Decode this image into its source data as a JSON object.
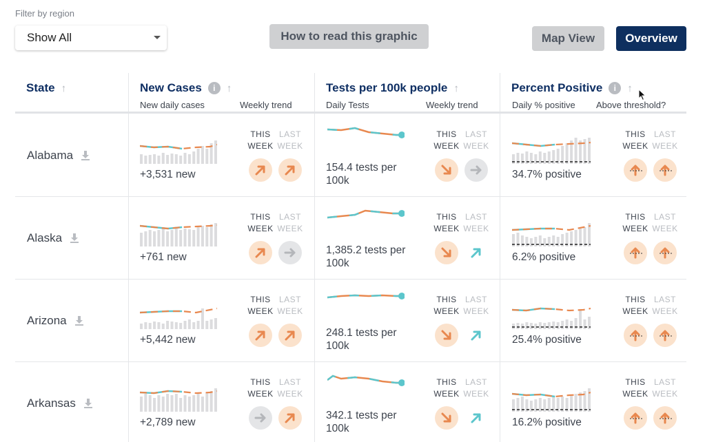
{
  "filter": {
    "label": "Filter by region",
    "selected": "Show All"
  },
  "buttons": {
    "how_to": "How to read this graphic",
    "map_view": "Map View",
    "overview": "Overview"
  },
  "headers": {
    "state": "State",
    "new_cases": {
      "title": "New Cases",
      "sub1": "New daily cases",
      "sub2": "Weekly trend"
    },
    "tests": {
      "title": "Tests per 100k people",
      "sub1": "Daily Tests",
      "sub2": "Weekly trend"
    },
    "percent": {
      "title": "Percent Positive",
      "sub1": "Daily % positive",
      "sub2": "Above threshold?"
    }
  },
  "week_labels": {
    "this_1": "THIS",
    "this_2": "WEEK",
    "last_1": "LAST",
    "last_2": "WEEK"
  },
  "colors": {
    "orange": "#e8884f",
    "teal": "#5cc6cc",
    "bar": "#dcdcde",
    "flat": "#b4b6ba",
    "navy": "#0e2f5f"
  },
  "icons": {
    "info": "info-icon",
    "sort": "sort-up-icon",
    "download": "download-icon",
    "cursor": "mouse-pointer-icon"
  },
  "rows": [
    {
      "state": "Alabama",
      "cases_text": "+3,531 new",
      "tests_text": "154.4 tests per 100k",
      "percent_text": "34.7% positive",
      "cases_trend": [
        "up",
        "up"
      ],
      "tests_trend": [
        "down",
        "flat"
      ],
      "percent_trend": [
        "above",
        "above"
      ]
    },
    {
      "state": "Alaska",
      "cases_text": "+761 new",
      "tests_text": "1,385.2 tests per 100k",
      "percent_text": "6.2% positive",
      "cases_trend": [
        "up",
        "flat"
      ],
      "tests_trend": [
        "down",
        "up-teal"
      ],
      "percent_trend": [
        "above",
        "above"
      ]
    },
    {
      "state": "Arizona",
      "cases_text": "+5,442 new",
      "tests_text": "248.1 tests per 100k",
      "percent_text": "25.4% positive",
      "cases_trend": [
        "up",
        "up"
      ],
      "tests_trend": [
        "down",
        "up-teal"
      ],
      "percent_trend": [
        "above",
        "above"
      ]
    },
    {
      "state": "Arkansas",
      "cases_text": "+2,789 new",
      "tests_text": "342.1 tests per 100k",
      "percent_text": "16.2% positive",
      "cases_trend": [
        "flat",
        "up"
      ],
      "tests_trend": [
        "down",
        "up-teal"
      ],
      "percent_trend": [
        "above",
        "above"
      ]
    }
  ]
}
